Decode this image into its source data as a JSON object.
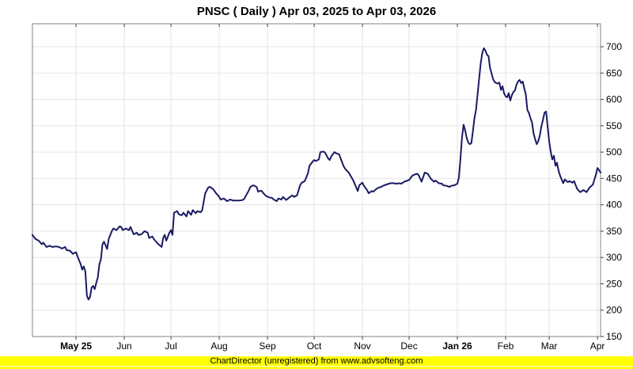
{
  "title": "PNSC ( Daily ) Apr 03, 2025 to Apr 03, 2026",
  "footer": "ChartDirector (unregistered) from www.advsofteng.com",
  "footer_bg": "#ffff00",
  "chart_data": {
    "type": "line",
    "title": "PNSC ( Daily ) Apr 03, 2025 to Apr 03, 2026",
    "series_name": "PNSC daily price",
    "line_color": "#1a1a64",
    "grid_color": "#e4e4e4",
    "border_color": "#848484",
    "tick_color": "#404040",
    "label_color": "#000000",
    "grid": true,
    "legend_position": "none",
    "ylim": [
      150,
      700
    ],
    "y_ticks": [
      150,
      200,
      250,
      300,
      350,
      400,
      450,
      500,
      550,
      600,
      650,
      700
    ],
    "x_axis_unit": "days from Apr 03, 2025",
    "x_range_days": [
      0,
      365
    ],
    "x_ticks": [
      {
        "label": "May 25",
        "day": 28,
        "bold": true
      },
      {
        "label": "Jun",
        "day": 59,
        "bold": false
      },
      {
        "label": "Jul",
        "day": 89,
        "bold": false
      },
      {
        "label": "Aug",
        "day": 120,
        "bold": false
      },
      {
        "label": "Sep",
        "day": 151,
        "bold": false
      },
      {
        "label": "Oct",
        "day": 181,
        "bold": false
      },
      {
        "label": "Nov",
        "day": 212,
        "bold": false
      },
      {
        "label": "Dec",
        "day": 242,
        "bold": false
      },
      {
        "label": "Jan 26",
        "day": 273,
        "bold": true
      },
      {
        "label": "Feb",
        "day": 304,
        "bold": false
      },
      {
        "label": "Mar",
        "day": 332,
        "bold": false
      },
      {
        "label": "Apr",
        "day": 363,
        "bold": false
      }
    ],
    "points": [
      [
        0,
        343
      ],
      [
        2,
        335
      ],
      [
        4,
        332
      ],
      [
        6,
        325
      ],
      [
        7,
        328
      ],
      [
        9,
        320
      ],
      [
        11,
        322
      ],
      [
        13,
        320
      ],
      [
        15,
        321
      ],
      [
        17,
        320
      ],
      [
        19,
        317
      ],
      [
        21,
        320
      ],
      [
        22,
        314
      ],
      [
        24,
        313
      ],
      [
        26,
        307
      ],
      [
        28,
        310
      ],
      [
        29,
        302
      ],
      [
        31,
        287
      ],
      [
        32,
        277
      ],
      [
        33,
        283
      ],
      [
        34,
        273
      ],
      [
        35,
        228
      ],
      [
        36,
        220
      ],
      [
        37,
        225
      ],
      [
        38,
        243
      ],
      [
        39,
        246
      ],
      [
        40,
        240
      ],
      [
        41,
        252
      ],
      [
        42,
        262
      ],
      [
        43,
        287
      ],
      [
        44,
        297
      ],
      [
        45,
        325
      ],
      [
        46,
        330
      ],
      [
        48,
        316
      ],
      [
        49,
        335
      ],
      [
        51,
        350
      ],
      [
        52,
        355
      ],
      [
        54,
        352
      ],
      [
        56,
        359
      ],
      [
        57,
        358
      ],
      [
        58,
        352
      ],
      [
        60,
        355
      ],
      [
        62,
        352
      ],
      [
        63,
        358
      ],
      [
        65,
        344
      ],
      [
        67,
        347
      ],
      [
        68,
        343
      ],
      [
        70,
        344
      ],
      [
        72,
        350
      ],
      [
        74,
        347
      ],
      [
        75,
        337
      ],
      [
        77,
        340
      ],
      [
        78,
        335
      ],
      [
        80,
        328
      ],
      [
        81,
        325
      ],
      [
        83,
        320
      ],
      [
        84,
        337
      ],
      [
        85,
        343
      ],
      [
        86,
        332
      ],
      [
        88,
        347
      ],
      [
        89,
        352
      ],
      [
        90,
        343
      ],
      [
        91,
        385
      ],
      [
        93,
        388
      ],
      [
        94,
        382
      ],
      [
        96,
        380
      ],
      [
        97,
        385
      ],
      [
        99,
        378
      ],
      [
        100,
        388
      ],
      [
        102,
        381
      ],
      [
        103,
        390
      ],
      [
        105,
        384
      ],
      [
        106,
        388
      ],
      [
        108,
        386
      ],
      [
        109,
        389
      ],
      [
        111,
        422
      ],
      [
        113,
        433
      ],
      [
        114,
        434
      ],
      [
        116,
        430
      ],
      [
        118,
        422
      ],
      [
        120,
        415
      ],
      [
        121,
        410
      ],
      [
        123,
        412
      ],
      [
        125,
        407
      ],
      [
        127,
        410
      ],
      [
        129,
        408
      ],
      [
        131,
        408
      ],
      [
        133,
        408
      ],
      [
        135,
        409
      ],
      [
        136,
        411
      ],
      [
        139,
        427
      ],
      [
        140,
        434
      ],
      [
        142,
        437
      ],
      [
        144,
        434
      ],
      [
        145,
        425
      ],
      [
        147,
        427
      ],
      [
        149,
        420
      ],
      [
        150,
        417
      ],
      [
        152,
        414
      ],
      [
        154,
        413
      ],
      [
        155,
        410
      ],
      [
        157,
        407
      ],
      [
        158,
        412
      ],
      [
        160,
        410
      ],
      [
        161,
        415
      ],
      [
        163,
        409
      ],
      [
        165,
        414
      ],
      [
        167,
        418
      ],
      [
        168,
        415
      ],
      [
        170,
        418
      ],
      [
        172,
        437
      ],
      [
        173,
        442
      ],
      [
        175,
        445
      ],
      [
        177,
        460
      ],
      [
        178,
        474
      ],
      [
        180,
        482
      ],
      [
        181,
        485
      ],
      [
        182,
        483
      ],
      [
        184,
        486
      ],
      [
        185,
        500
      ],
      [
        187,
        501
      ],
      [
        188,
        499
      ],
      [
        190,
        488
      ],
      [
        191,
        485
      ],
      [
        192,
        492
      ],
      [
        194,
        500
      ],
      [
        195,
        498
      ],
      [
        197,
        496
      ],
      [
        198,
        488
      ],
      [
        200,
        473
      ],
      [
        201,
        468
      ],
      [
        203,
        462
      ],
      [
        204,
        457
      ],
      [
        206,
        447
      ],
      [
        207,
        440
      ],
      [
        209,
        426
      ],
      [
        210,
        437
      ],
      [
        212,
        442
      ],
      [
        213,
        436
      ],
      [
        215,
        428
      ],
      [
        216,
        422
      ],
      [
        218,
        426
      ],
      [
        219,
        425
      ],
      [
        221,
        430
      ],
      [
        222,
        432
      ],
      [
        224,
        434
      ],
      [
        226,
        437
      ],
      [
        229,
        440
      ],
      [
        230,
        441
      ],
      [
        232,
        441
      ],
      [
        234,
        440
      ],
      [
        236,
        441
      ],
      [
        237,
        440
      ],
      [
        239,
        444
      ],
      [
        241,
        446
      ],
      [
        242,
        447
      ],
      [
        244,
        455
      ],
      [
        246,
        458
      ],
      [
        247,
        459
      ],
      [
        248,
        457
      ],
      [
        250,
        444
      ],
      [
        251,
        452
      ],
      [
        252,
        461
      ],
      [
        254,
        459
      ],
      [
        256,
        449
      ],
      [
        258,
        444
      ],
      [
        259,
        446
      ],
      [
        261,
        441
      ],
      [
        263,
        440
      ],
      [
        264,
        437
      ],
      [
        266,
        436
      ],
      [
        268,
        434
      ],
      [
        269,
        436
      ],
      [
        271,
        437
      ],
      [
        273,
        440
      ],
      [
        274,
        452
      ],
      [
        275,
        489
      ],
      [
        276,
        528
      ],
      [
        277,
        552
      ],
      [
        278,
        541
      ],
      [
        279,
        527
      ],
      [
        280,
        518
      ],
      [
        281,
        515
      ],
      [
        282,
        517
      ],
      [
        283,
        540
      ],
      [
        284,
        565
      ],
      [
        285,
        580
      ],
      [
        286,
        610
      ],
      [
        287,
        640
      ],
      [
        288,
        668
      ],
      [
        289,
        688
      ],
      [
        290,
        697
      ],
      [
        291,
        693
      ],
      [
        292,
        685
      ],
      [
        293,
        682
      ],
      [
        294,
        660
      ],
      [
        295,
        649
      ],
      [
        296,
        638
      ],
      [
        297,
        633
      ],
      [
        298,
        631
      ],
      [
        299,
        630
      ],
      [
        300,
        632
      ],
      [
        301,
        618
      ],
      [
        302,
        625
      ],
      [
        303,
        612
      ],
      [
        304,
        606
      ],
      [
        305,
        604
      ],
      [
        306,
        612
      ],
      [
        307,
        598
      ],
      [
        308,
        608
      ],
      [
        309,
        614
      ],
      [
        310,
        617
      ],
      [
        311,
        628
      ],
      [
        312,
        634
      ],
      [
        313,
        637
      ],
      [
        314,
        631
      ],
      [
        315,
        634
      ],
      [
        316,
        621
      ],
      [
        317,
        609
      ],
      [
        318,
        580
      ],
      [
        319,
        574
      ],
      [
        320,
        564
      ],
      [
        321,
        556
      ],
      [
        322,
        535
      ],
      [
        323,
        524
      ],
      [
        324,
        515
      ],
      [
        325,
        521
      ],
      [
        326,
        532
      ],
      [
        327,
        549
      ],
      [
        328,
        561
      ],
      [
        329,
        575
      ],
      [
        330,
        577
      ],
      [
        331,
        549
      ],
      [
        332,
        520
      ],
      [
        333,
        500
      ],
      [
        334,
        486
      ],
      [
        335,
        493
      ],
      [
        336,
        474
      ],
      [
        337,
        480
      ],
      [
        338,
        465
      ],
      [
        339,
        455
      ],
      [
        341,
        441
      ],
      [
        342,
        448
      ],
      [
        344,
        443
      ],
      [
        345,
        445
      ],
      [
        347,
        442
      ],
      [
        348,
        445
      ],
      [
        350,
        430
      ],
      [
        352,
        424
      ],
      [
        354,
        428
      ],
      [
        356,
        424
      ],
      [
        358,
        433
      ],
      [
        360,
        438
      ],
      [
        362,
        457
      ],
      [
        363,
        470
      ],
      [
        364,
        466
      ],
      [
        365,
        461
      ]
    ]
  }
}
